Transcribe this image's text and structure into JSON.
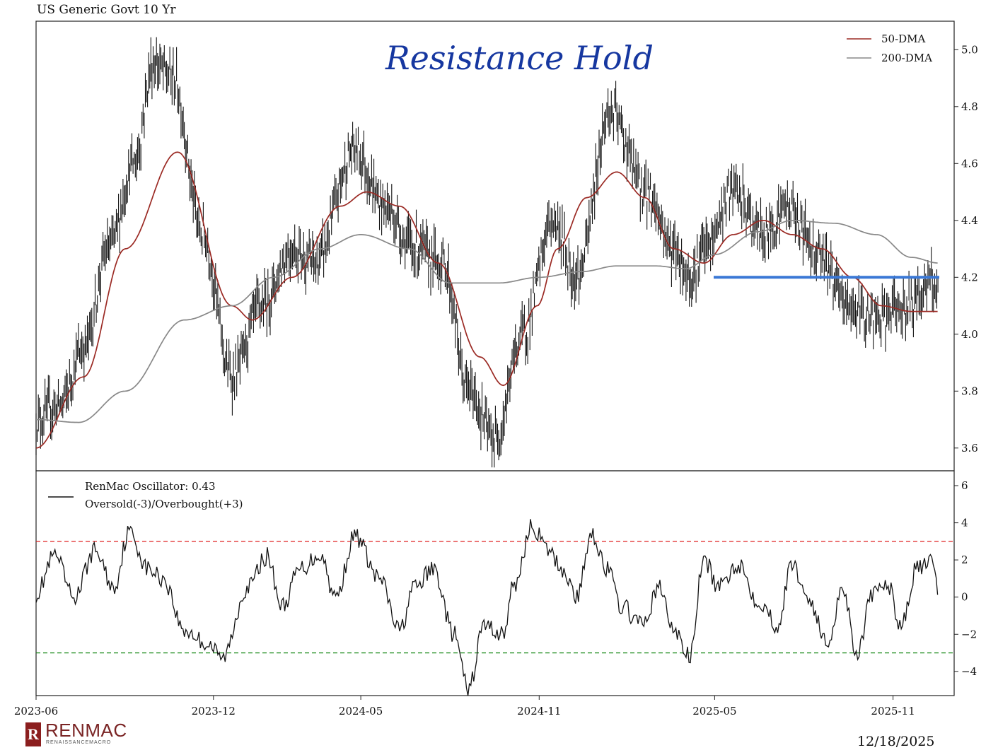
{
  "chart_data": {
    "type": "line",
    "title": "US Generic Govt 10 Yr",
    "annotation": "Resistance Hold",
    "date": "12/18/2025",
    "brand": {
      "name": "RENMAC",
      "subtitle": "RENAISSANCEMACRO",
      "logo_letter": "R"
    },
    "x_ticks": [
      "2023-06",
      "2023-12",
      "2024-05",
      "2024-11",
      "2025-05",
      "2025-11"
    ],
    "x_tick_values": [
      "2023-06-01",
      "2023-12-01",
      "2024-05-01",
      "2024-11-01",
      "2025-05-01",
      "2025-11-01"
    ],
    "xlim": [
      "2023-06-01",
      "2025-12-18"
    ],
    "grid": false,
    "upper": {
      "ylim": [
        3.52,
        5.1
      ],
      "y_ticks": [
        "3.6",
        "3.8",
        "4.0",
        "4.2",
        "4.4",
        "4.6",
        "4.8",
        "5.0"
      ],
      "y_tick_values": [
        3.6,
        3.8,
        4.0,
        4.2,
        4.4,
        4.6,
        4.8,
        5.0
      ],
      "legend": {
        "location": "top-right",
        "entries": [
          "50-DMA",
          "200-DMA"
        ]
      },
      "price_keypoints": {
        "x": [
          "2023-06-01",
          "2023-06-25",
          "2023-07-20",
          "2023-08-15",
          "2023-09-10",
          "2023-09-30",
          "2023-10-20",
          "2023-11-20",
          "2023-12-20",
          "2024-01-20",
          "2024-02-20",
          "2024-03-15",
          "2024-04-25",
          "2024-05-25",
          "2024-06-25",
          "2024-07-25",
          "2024-08-20",
          "2024-09-16",
          "2024-10-15",
          "2024-11-15",
          "2024-12-10",
          "2025-01-13",
          "2025-02-20",
          "2025-03-20",
          "2025-04-05",
          "2025-04-22",
          "2025-05-20",
          "2025-06-20",
          "2025-07-15",
          "2025-08-15",
          "2025-09-15",
          "2025-10-15",
          "2025-11-15",
          "2025-12-10",
          "2025-12-18"
        ],
        "y": [
          3.7,
          3.75,
          3.95,
          4.3,
          4.6,
          4.95,
          4.9,
          4.35,
          3.85,
          4.1,
          4.3,
          4.25,
          4.65,
          4.45,
          4.3,
          4.25,
          3.8,
          3.63,
          4.0,
          4.4,
          4.2,
          4.78,
          4.5,
          4.3,
          4.2,
          4.3,
          4.5,
          4.35,
          4.45,
          4.3,
          4.1,
          4.05,
          4.1,
          4.18,
          4.15
        ]
      },
      "series": [
        {
          "name": "50-DMA",
          "color": "#9b2a24",
          "x": [
            "2023-06-01",
            "2023-07-20",
            "2023-09-01",
            "2023-10-25",
            "2023-12-20",
            "2024-01-10",
            "2024-02-20",
            "2024-04-10",
            "2024-05-07",
            "2024-06-10",
            "2024-07-20",
            "2024-09-01",
            "2024-09-25",
            "2024-10-30",
            "2024-11-20",
            "2024-12-20",
            "2025-01-20",
            "2025-02-18",
            "2025-03-20",
            "2025-04-20",
            "2025-05-20",
            "2025-06-20",
            "2025-07-20",
            "2025-08-20",
            "2025-09-20",
            "2025-10-20",
            "2025-11-20",
            "2025-12-18"
          ],
          "y": [
            3.6,
            3.85,
            4.3,
            4.64,
            4.1,
            4.05,
            4.2,
            4.45,
            4.5,
            4.45,
            4.25,
            3.92,
            3.82,
            4.1,
            4.3,
            4.48,
            4.57,
            4.48,
            4.3,
            4.25,
            4.35,
            4.4,
            4.35,
            4.3,
            4.2,
            4.1,
            4.08,
            4.08
          ]
        },
        {
          "name": "200-DMA",
          "color": "#888888",
          "x": [
            "2023-06-01",
            "2023-07-15",
            "2023-09-01",
            "2023-11-01",
            "2023-12-20",
            "2024-02-01",
            "2024-03-20",
            "2024-05-01",
            "2024-06-20",
            "2024-08-01",
            "2024-09-20",
            "2024-11-01",
            "2024-12-15",
            "2025-01-20",
            "2025-03-01",
            "2025-04-01",
            "2025-05-01",
            "2025-06-15",
            "2025-07-20",
            "2025-09-01",
            "2025-10-15",
            "2025-11-20",
            "2025-12-18"
          ],
          "y": [
            3.7,
            3.69,
            3.8,
            4.05,
            4.1,
            4.2,
            4.3,
            4.35,
            4.3,
            4.18,
            4.18,
            4.2,
            4.22,
            4.24,
            4.24,
            4.23,
            4.28,
            4.36,
            4.4,
            4.39,
            4.35,
            4.27,
            4.25
          ]
        }
      ],
      "resistance": {
        "y": 4.2,
        "x": [
          "2025-04-30",
          "2025-12-18"
        ],
        "color": "#3a78d6"
      }
    },
    "lower": {
      "ylim": [
        -5.3,
        6.8
      ],
      "y_ticks": [
        "−4",
        "−2",
        "0",
        "2",
        "4",
        "6"
      ],
      "y_tick_values": [
        -4,
        -2,
        0,
        2,
        4,
        6
      ],
      "legend": {
        "location": "top-left",
        "entries": [
          "RenMac Oscillator: 0.43",
          "Oversold(-3)/Overbought(+3)"
        ]
      },
      "levels": [
        {
          "name": "Overbought",
          "value": 3,
          "color": "#e02020"
        },
        {
          "name": "Oversold",
          "value": -3,
          "color": "#1a8a1a"
        }
      ],
      "oscillator_keypoints": {
        "x": [
          "2023-06-01",
          "2023-06-20",
          "2023-07-10",
          "2023-08-01",
          "2023-08-20",
          "2023-09-05",
          "2023-09-25",
          "2023-10-10",
          "2023-11-01",
          "2023-11-25",
          "2023-12-10",
          "2024-01-05",
          "2024-01-25",
          "2024-02-10",
          "2024-02-28",
          "2024-03-20",
          "2024-04-05",
          "2024-04-25",
          "2024-05-20",
          "2024-06-10",
          "2024-06-25",
          "2024-07-15",
          "2024-08-05",
          "2024-08-20",
          "2024-09-05",
          "2024-09-25",
          "2024-10-05",
          "2024-10-25",
          "2024-11-10",
          "2024-11-25",
          "2024-12-10",
          "2024-12-25",
          "2025-01-10",
          "2025-01-25",
          "2025-02-15",
          "2025-03-05",
          "2025-03-20",
          "2025-04-05",
          "2025-04-20",
          "2025-05-05",
          "2025-05-25",
          "2025-06-15",
          "2025-07-05",
          "2025-07-20",
          "2025-08-05",
          "2025-08-25",
          "2025-09-10",
          "2025-09-25",
          "2025-10-10",
          "2025-10-25",
          "2025-11-10",
          "2025-11-25",
          "2025-12-10",
          "2025-12-18"
        ],
        "y": [
          0.2,
          2.2,
          0.0,
          2.5,
          0.5,
          3.5,
          1.5,
          1.0,
          -1.8,
          -2.5,
          -3.3,
          0.5,
          2.2,
          -0.5,
          1.5,
          2.3,
          0.0,
          3.3,
          1.0,
          -1.8,
          0.5,
          1.5,
          -2.0,
          -5.0,
          -1.5,
          -2.0,
          0.5,
          3.8,
          2.5,
          1.5,
          0.0,
          3.5,
          1.5,
          -0.5,
          -1.5,
          0.5,
          -1.8,
          -3.2,
          2.0,
          0.5,
          1.8,
          -0.2,
          -1.5,
          1.8,
          0.0,
          -2.5,
          0.5,
          -3.0,
          0.0,
          0.8,
          -1.5,
          1.5,
          1.8,
          0.43
        ]
      },
      "series": [
        {
          "name": "RenMac Oscillator",
          "color": "#111111"
        }
      ]
    }
  }
}
